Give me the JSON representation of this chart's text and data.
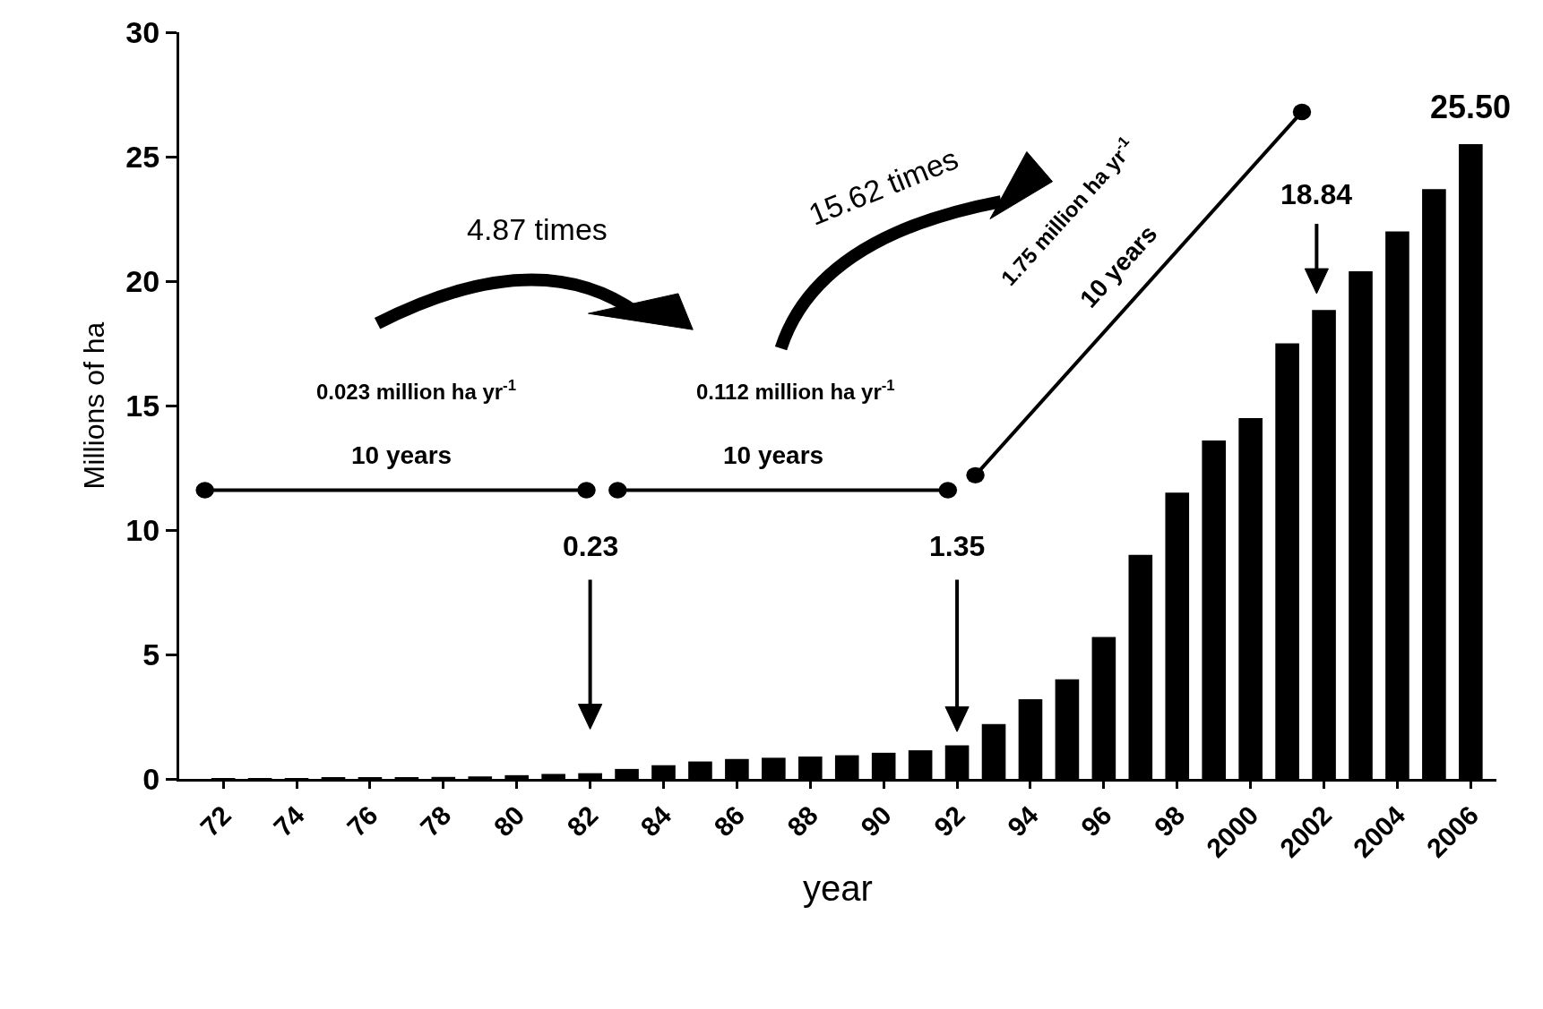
{
  "chart_data": {
    "type": "bar",
    "xlabel": "year",
    "ylabel": "Millions of ha",
    "categories": [
      "72",
      null,
      "74",
      null,
      "76",
      null,
      "78",
      null,
      "80",
      null,
      "82",
      null,
      "84",
      null,
      "86",
      null,
      "88",
      null,
      "90",
      null,
      "92",
      null,
      "94",
      null,
      "96",
      null,
      "98",
      null,
      "2000",
      null,
      "2002",
      null,
      "2004",
      null,
      "2006"
    ],
    "values": [
      0.01,
      0.02,
      0.03,
      0.04,
      0.05,
      0.06,
      0.08,
      0.1,
      0.15,
      0.2,
      0.23,
      0.4,
      0.55,
      0.7,
      0.8,
      0.85,
      0.9,
      0.95,
      1.05,
      1.15,
      1.35,
      2.2,
      3.2,
      4.0,
      5.7,
      9.0,
      11.5,
      13.6,
      14.5,
      17.5,
      18.84,
      20.4,
      22.0,
      23.7,
      25.5
    ],
    "color": "#000000",
    "ylim": [
      0,
      30
    ],
    "yticks": [
      0,
      5,
      10,
      15,
      20,
      25,
      30
    ],
    "annotations": [
      "0.23",
      "1.35",
      "18.84",
      {
        "text": "25.50",
        "x": "2006",
        "y": 25.5
      },
      "0.023 million ha yr$^{-1}$",
      "10 years",
      "0.112 million ha yr$^{-1}$",
      "10 years",
      "4.87 times",
      "15.62 times",
      "1.75 million ha yr$^{-1}$",
      "10 years"
    ]
  }
}
